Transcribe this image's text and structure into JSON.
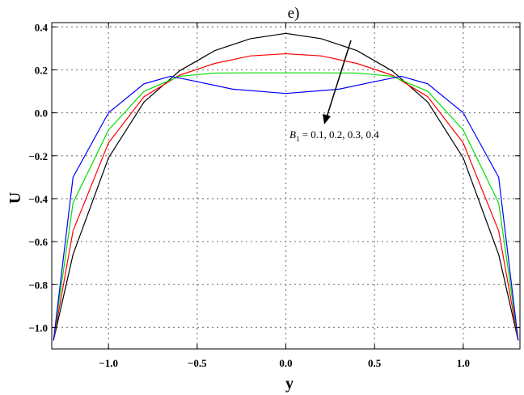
{
  "chart_data": {
    "type": "line",
    "title": "e)",
    "xlabel": "y",
    "ylabel": "U",
    "xlim": [
      -1.32,
      1.32
    ],
    "ylim": [
      -1.1,
      0.42
    ],
    "xticks": [
      -1.0,
      -0.5,
      0.0,
      0.5,
      1.0
    ],
    "xtick_labels": [
      "−1.0",
      "−0.5",
      "0.0",
      "0.5",
      "1.0"
    ],
    "yticks": [
      0.4,
      0.2,
      0.0,
      -0.2,
      -0.4,
      -0.6,
      -0.8,
      -1.0
    ],
    "ytick_labels": [
      "0.4",
      "0.2",
      "0.0",
      "−0.2",
      "−0.4",
      "−0.6",
      "−0.8",
      "−1.0"
    ],
    "grid": true,
    "grid_style": "dotted",
    "annotation": {
      "text_prefix": "B",
      "text_sub": "1",
      "text_rest": " = 0.1, 0.2, 0.3, 0.4",
      "arrow_direction": "down-left"
    },
    "series": [
      {
        "color": "#000000",
        "x": [
          -1.31,
          -1.2,
          -1.0,
          -0.8,
          -0.6,
          -0.4,
          -0.2,
          0.0,
          0.2,
          0.4,
          0.6,
          0.8,
          1.0,
          1.2,
          1.31
        ],
        "y": [
          -1.06,
          -0.66,
          -0.21,
          0.05,
          0.195,
          0.29,
          0.345,
          0.37,
          0.345,
          0.29,
          0.195,
          0.05,
          -0.21,
          -0.66,
          -1.06
        ]
      },
      {
        "color": "#ff0000",
        "x": [
          -1.31,
          -1.2,
          -1.0,
          -0.8,
          -0.6,
          -0.4,
          -0.2,
          0.0,
          0.2,
          0.4,
          0.6,
          0.8,
          1.0,
          1.2,
          1.31
        ],
        "y": [
          -1.06,
          -0.55,
          -0.14,
          0.075,
          0.175,
          0.23,
          0.265,
          0.275,
          0.265,
          0.23,
          0.175,
          0.075,
          -0.14,
          -0.55,
          -1.06
        ]
      },
      {
        "color": "#00dd00",
        "x": [
          -1.31,
          -1.2,
          -1.0,
          -0.8,
          -0.6,
          -0.4,
          -0.2,
          0.0,
          0.2,
          0.4,
          0.6,
          0.8,
          1.0,
          1.2,
          1.31
        ],
        "y": [
          -1.06,
          -0.42,
          -0.08,
          0.1,
          0.17,
          0.185,
          0.186,
          0.186,
          0.186,
          0.185,
          0.17,
          0.1,
          -0.08,
          -0.42,
          -1.06
        ]
      },
      {
        "color": "#0000ff",
        "x": [
          -1.31,
          -1.2,
          -1.0,
          -0.8,
          -0.65,
          -0.5,
          -0.3,
          0.0,
          0.3,
          0.5,
          0.65,
          0.8,
          1.0,
          1.2,
          1.31
        ],
        "y": [
          -1.06,
          -0.3,
          0.0,
          0.135,
          0.17,
          0.145,
          0.11,
          0.09,
          0.11,
          0.145,
          0.17,
          0.135,
          0.0,
          -0.3,
          -1.06
        ]
      }
    ]
  }
}
